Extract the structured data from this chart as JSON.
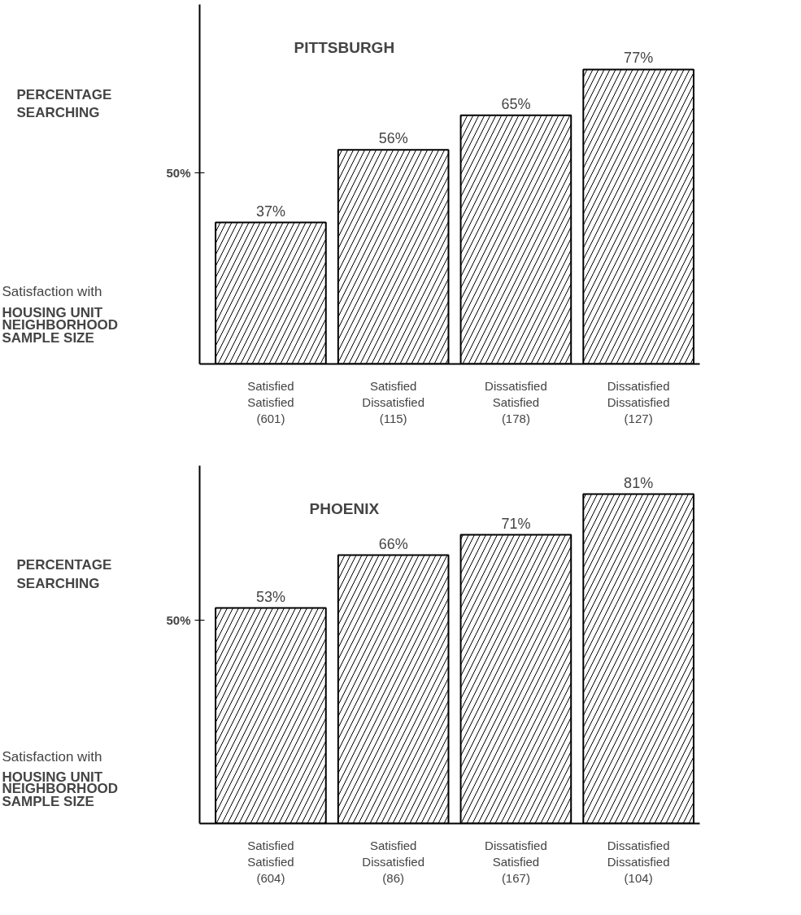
{
  "chart_data": [
    {
      "type": "bar",
      "title": "PITTSBURGH",
      "ylabel": "PERCENTAGE\nSEARCHING",
      "categories": [
        "Satisfied\nSatisfied\n(601)",
        "Satisfied\nDissatisfied\n(115)",
        "Dissatisfied\nSatisfied\n(178)",
        "Dissatisfied\nDissatisfied\n(127)"
      ],
      "values": [
        37,
        56,
        65,
        77
      ],
      "value_labels": [
        "37%",
        "56%",
        "65%",
        "77%"
      ],
      "color": "#ffffff",
      "ylim": [
        0,
        94
      ],
      "yticks": [
        {
          "value": 50,
          "label": "50%"
        }
      ],
      "grid": false,
      "annotations": [
        "Satisfaction with",
        "HOUSING UNIT",
        "NEIGHBORHOOD",
        "SAMPLE SIZE"
      ]
    },
    {
      "type": "bar",
      "title": "PHOENIX",
      "ylabel": "PERCENTAGE\nSEARCHING",
      "categories": [
        "Satisfied\nSatisfied\n(604)",
        "Satisfied\nDissatisfied\n(86)",
        "Dissatisfied\nSatisfied\n(167)",
        "Dissatisfied\nDissatisfied\n(104)"
      ],
      "values": [
        53,
        66,
        71,
        81
      ],
      "value_labels": [
        "53%",
        "66%",
        "71%",
        "81%"
      ],
      "color": "#ffffff",
      "ylim": [
        0,
        88
      ],
      "yticks": [
        {
          "value": 50,
          "label": "50%"
        }
      ],
      "grid": false,
      "annotations": [
        "Satisfaction with",
        "HOUSING UNIT",
        "NEIGHBORHOOD",
        "SAMPLE SIZE"
      ]
    }
  ]
}
